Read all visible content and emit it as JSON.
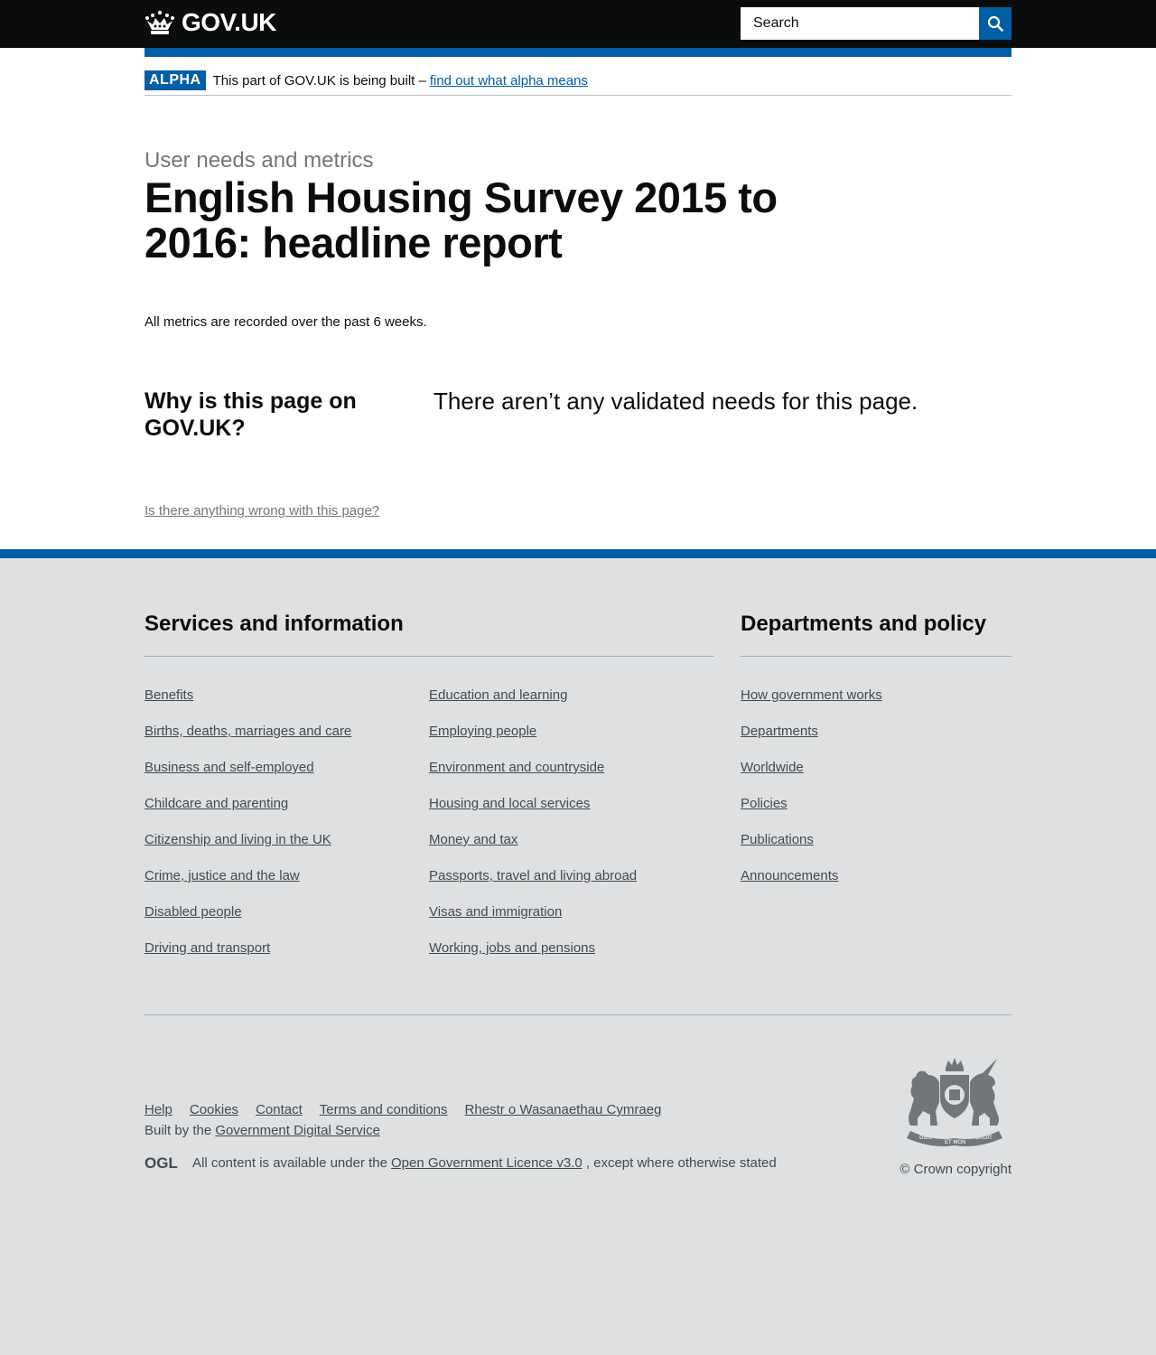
{
  "header": {
    "logo_text": "GOV.UK",
    "search_placeholder": "Search",
    "search_button_label": "Search"
  },
  "phase_banner": {
    "tag": "ALPHA",
    "text": "This part of GOV.UK is being built –",
    "link_text": "find out what alpha means"
  },
  "main": {
    "caption": "User needs and metrics",
    "title": "English Housing Survey 2015 to 2016: headline report",
    "metrics_note": "All metrics are recorded over the past 6 weeks.",
    "needs_heading": "Why is this page on GOV.UK?",
    "needs_text": "There aren’t any validated needs for this page.",
    "report_link": "Is there anything wrong with this page?"
  },
  "footer": {
    "services_heading": "Services and information",
    "services_col1": [
      "Benefits",
      "Births, deaths, marriages and care",
      "Business and self-employed",
      "Childcare and parenting",
      "Citizenship and living in the UK",
      "Crime, justice and the law",
      "Disabled people",
      "Driving and transport"
    ],
    "services_col2": [
      "Education and learning",
      "Employing people",
      "Environment and countryside",
      "Housing and local services",
      "Money and tax",
      "Passports, travel and living abroad",
      "Visas and immigration",
      "Working, jobs and pensions"
    ],
    "departments_heading": "Departments and policy",
    "departments": [
      "How government works",
      "Departments",
      "Worldwide",
      "Policies",
      "Publications",
      "Announcements"
    ],
    "meta_links": [
      "Help",
      "Cookies",
      "Contact",
      "Terms and conditions",
      "Rhestr o Wasanaethau Cymraeg"
    ],
    "built_by_prefix": "Built by the",
    "built_by_link": "Government Digital Service",
    "ogl_logo_text": "OGL",
    "licence_prefix": "All content is available under the",
    "licence_link": "Open Government Licence v3.0",
    "licence_suffix": ", except where otherwise stated",
    "copyright": "© Crown copyright",
    "crest_motto_1": "DIEU",
    "crest_motto_2": "ET MON",
    "crest_motto_3": "DROIT"
  },
  "colors": {
    "brand_blue": "#005ea5",
    "header_black": "#0b0c0c",
    "footer_grey": "#dee0e2",
    "secondary_text": "#6f777b"
  }
}
